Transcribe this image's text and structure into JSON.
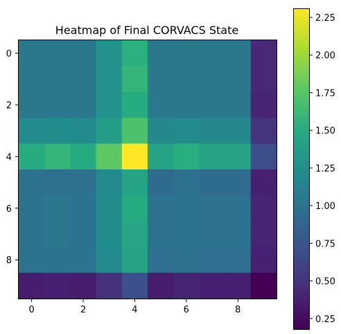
{
  "chart_data": {
    "type": "heatmap",
    "title": "Heatmap of Final CORVACS State",
    "xlabel": "",
    "ylabel": "",
    "x_ticks": [
      0,
      2,
      4,
      6,
      8
    ],
    "y_ticks": [
      0,
      2,
      4,
      6,
      8
    ],
    "colorbar": {
      "ticks": [
        "0.25",
        "0.50",
        "0.75",
        "1.00",
        "1.25",
        "1.50",
        "1.75",
        "2.00",
        "2.25"
      ],
      "range": [
        0.18,
        2.31
      ],
      "colormap": "viridis"
    },
    "grid": false,
    "values": [
      [
        1.03,
        1.03,
        1.03,
        1.27,
        1.53,
        1.03,
        1.03,
        1.03,
        1.03,
        0.43
      ],
      [
        1.03,
        1.03,
        1.03,
        1.27,
        1.58,
        1.03,
        1.03,
        1.03,
        1.03,
        0.43
      ],
      [
        1.03,
        1.03,
        1.03,
        1.27,
        1.5,
        1.03,
        1.03,
        1.03,
        1.03,
        0.4
      ],
      [
        1.2,
        1.22,
        1.2,
        1.37,
        1.7,
        1.18,
        1.2,
        1.18,
        1.18,
        0.5
      ],
      [
        1.5,
        1.58,
        1.48,
        1.78,
        2.31,
        1.43,
        1.52,
        1.43,
        1.43,
        0.7
      ],
      [
        0.98,
        0.98,
        0.98,
        1.2,
        1.43,
        0.93,
        0.98,
        0.93,
        0.93,
        0.38
      ],
      [
        1.0,
        1.03,
        1.0,
        1.22,
        1.48,
        0.98,
        1.0,
        0.98,
        0.98,
        0.4
      ],
      [
        1.0,
        1.03,
        1.0,
        1.22,
        1.45,
        0.98,
        1.0,
        0.98,
        0.98,
        0.4
      ],
      [
        1.0,
        1.0,
        1.0,
        1.2,
        1.43,
        0.95,
        0.98,
        0.95,
        0.95,
        0.38
      ],
      [
        0.35,
        0.38,
        0.35,
        0.48,
        0.7,
        0.35,
        0.4,
        0.38,
        0.38,
        0.18
      ]
    ]
  }
}
